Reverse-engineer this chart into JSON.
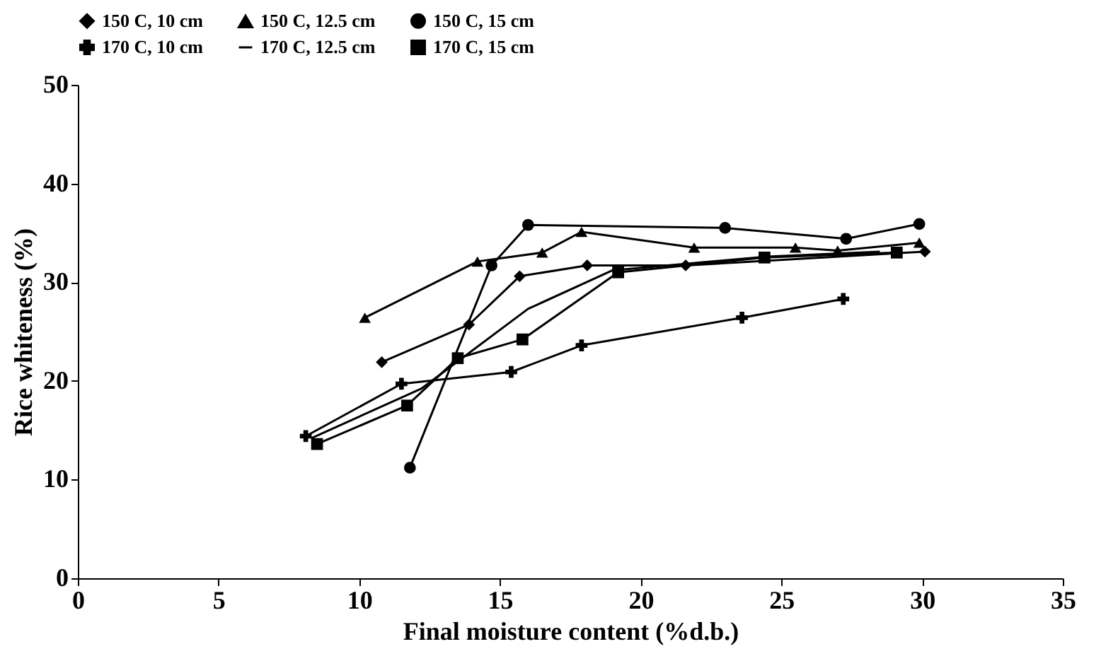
{
  "chart_data": {
    "type": "line",
    "xlabel": "Final moisture content (%d.b.)",
    "ylabel": "Rice whiteness (%)",
    "xlim": [
      0,
      35
    ],
    "xticks": [
      0,
      5,
      10,
      15,
      20,
      25,
      30,
      35
    ],
    "ylim": [
      0,
      50
    ],
    "yticks": [
      0,
      10,
      20,
      30,
      40,
      50
    ],
    "grid": false,
    "legend": "top",
    "series": [
      {
        "name": "150  C, 10 cm",
        "color": "#000000",
        "marker": "diamond",
        "x": [
          10.8,
          13.9,
          15.7,
          18.1,
          21.6,
          30.1
        ],
        "values": [
          21.9,
          25.7,
          30.6,
          31.7,
          31.7,
          33.1
        ]
      },
      {
        "name": "150  C, 12.5 cm",
        "color": "#000000",
        "marker": "triangle",
        "x": [
          10.2,
          14.2,
          16.5,
          17.9,
          21.9,
          25.5,
          27.0,
          29.9
        ],
        "values": [
          26.4,
          32.1,
          33.0,
          35.1,
          33.5,
          33.5,
          33.2,
          34.0
        ]
      },
      {
        "name": "150  C, 15 cm",
        "color": "#000000",
        "marker": "circle",
        "x": [
          11.8,
          14.7,
          16.0,
          23.0,
          27.3,
          29.9
        ],
        "values": [
          11.2,
          31.7,
          35.8,
          35.5,
          34.4,
          35.9
        ]
      },
      {
        "name": "170  C, 10 cm",
        "color": "#000000",
        "marker": "cross",
        "x": [
          8.1,
          11.5,
          15.4,
          17.9,
          23.6,
          27.2
        ],
        "values": [
          14.4,
          19.7,
          20.9,
          23.6,
          26.4,
          28.3
        ]
      },
      {
        "name": "170  C, 12.5 cm",
        "color": "#000000",
        "marker": "none",
        "x": [
          8.3,
          12.2,
          16.0,
          19.0,
          24.5,
          28.5
        ],
        "values": [
          14.2,
          19.2,
          27.3,
          31.2,
          32.6,
          33.1
        ]
      },
      {
        "name": "170  C, 15 cm",
        "color": "#000000",
        "marker": "square",
        "x": [
          8.5,
          11.7,
          13.5,
          15.8,
          19.2,
          24.4,
          29.1
        ],
        "values": [
          13.6,
          17.5,
          22.3,
          24.2,
          31.0,
          32.5,
          33.0
        ]
      }
    ]
  }
}
